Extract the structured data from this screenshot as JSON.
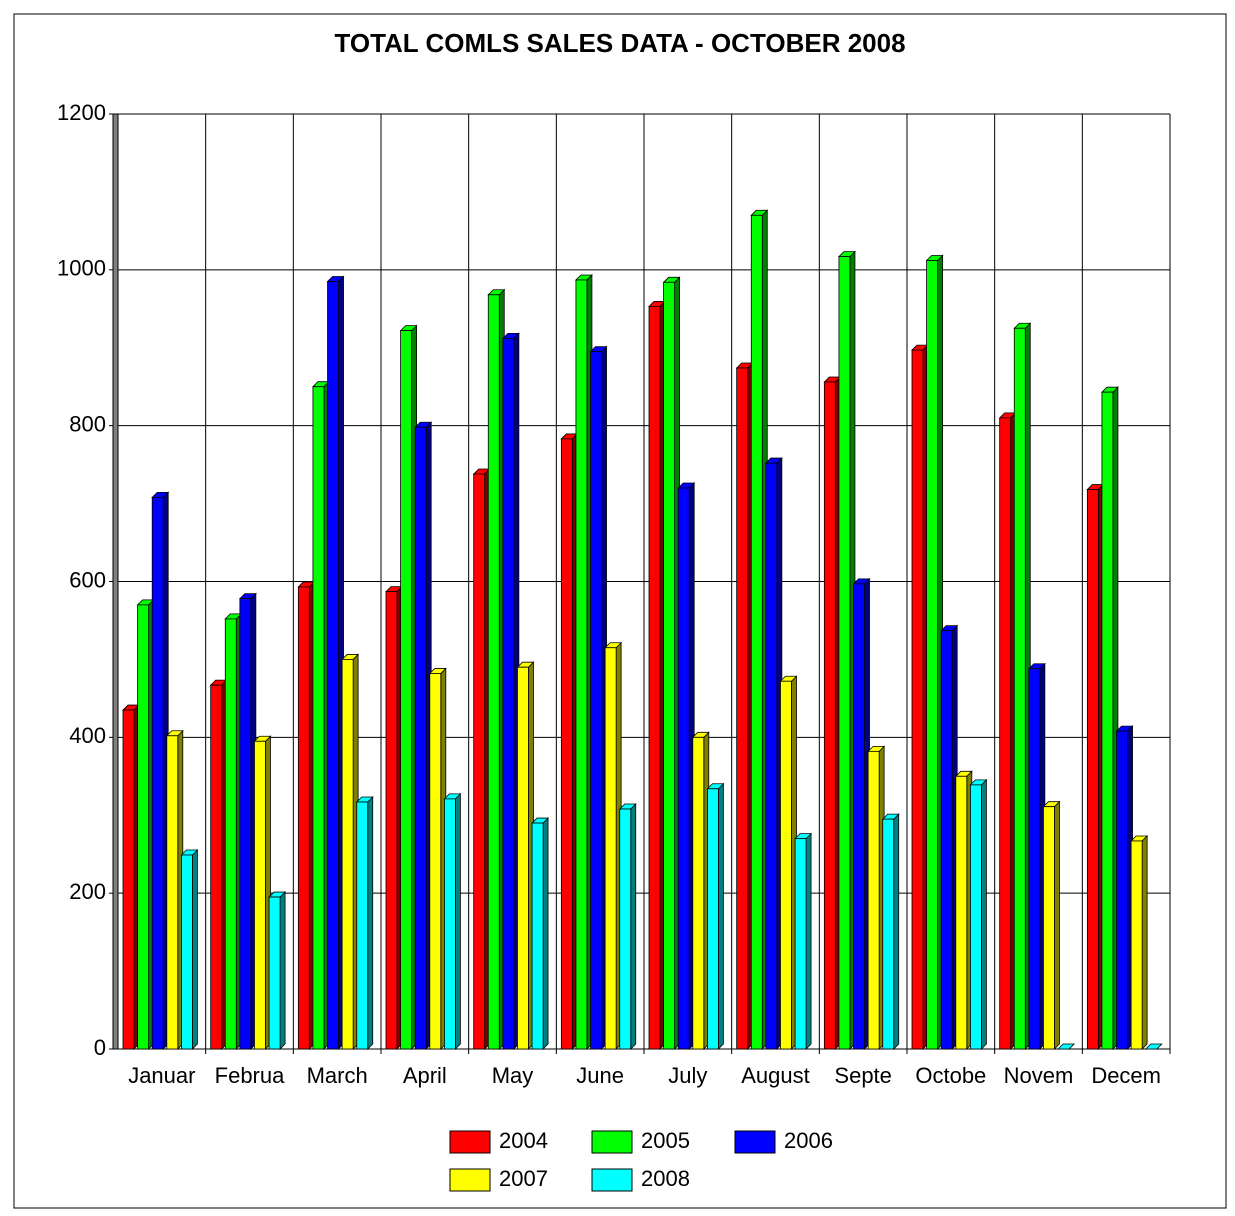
{
  "chart_data": {
    "type": "bar3d",
    "title": "TOTAL COMLS SALES DATA -  OCTOBER 2008",
    "categories": [
      "Januar",
      "Februa",
      "March",
      "April",
      "May",
      "June",
      "July",
      "August",
      "Septe",
      "Octobe",
      "Novem",
      "Decem"
    ],
    "series": [
      {
        "name": "2004",
        "color": "#ff0000",
        "values": [
          435,
          467,
          593,
          587,
          738,
          783,
          953,
          874,
          856,
          897,
          810,
          718
        ]
      },
      {
        "name": "2005",
        "color": "#00ff00",
        "values": [
          570,
          552,
          850,
          922,
          968,
          987,
          984,
          1070,
          1017,
          1012,
          925,
          843
        ]
      },
      {
        "name": "2006",
        "color": "#0000ff",
        "values": [
          708,
          578,
          985,
          798,
          912,
          895,
          720,
          752,
          597,
          537,
          488,
          408
        ]
      },
      {
        "name": "2007",
        "color": "#ffff00",
        "values": [
          402,
          395,
          500,
          482,
          490,
          515,
          400,
          472,
          382,
          350,
          311,
          267
        ]
      },
      {
        "name": "2008",
        "color": "#00ffff",
        "values": [
          249,
          195,
          317,
          321,
          290,
          308,
          334,
          270,
          295,
          339,
          0,
          0
        ]
      }
    ],
    "ylim": [
      0,
      1200
    ],
    "yticks": [
      0,
      200,
      400,
      600,
      800,
      1000,
      1200
    ],
    "grid": true,
    "legend": "bottom"
  }
}
